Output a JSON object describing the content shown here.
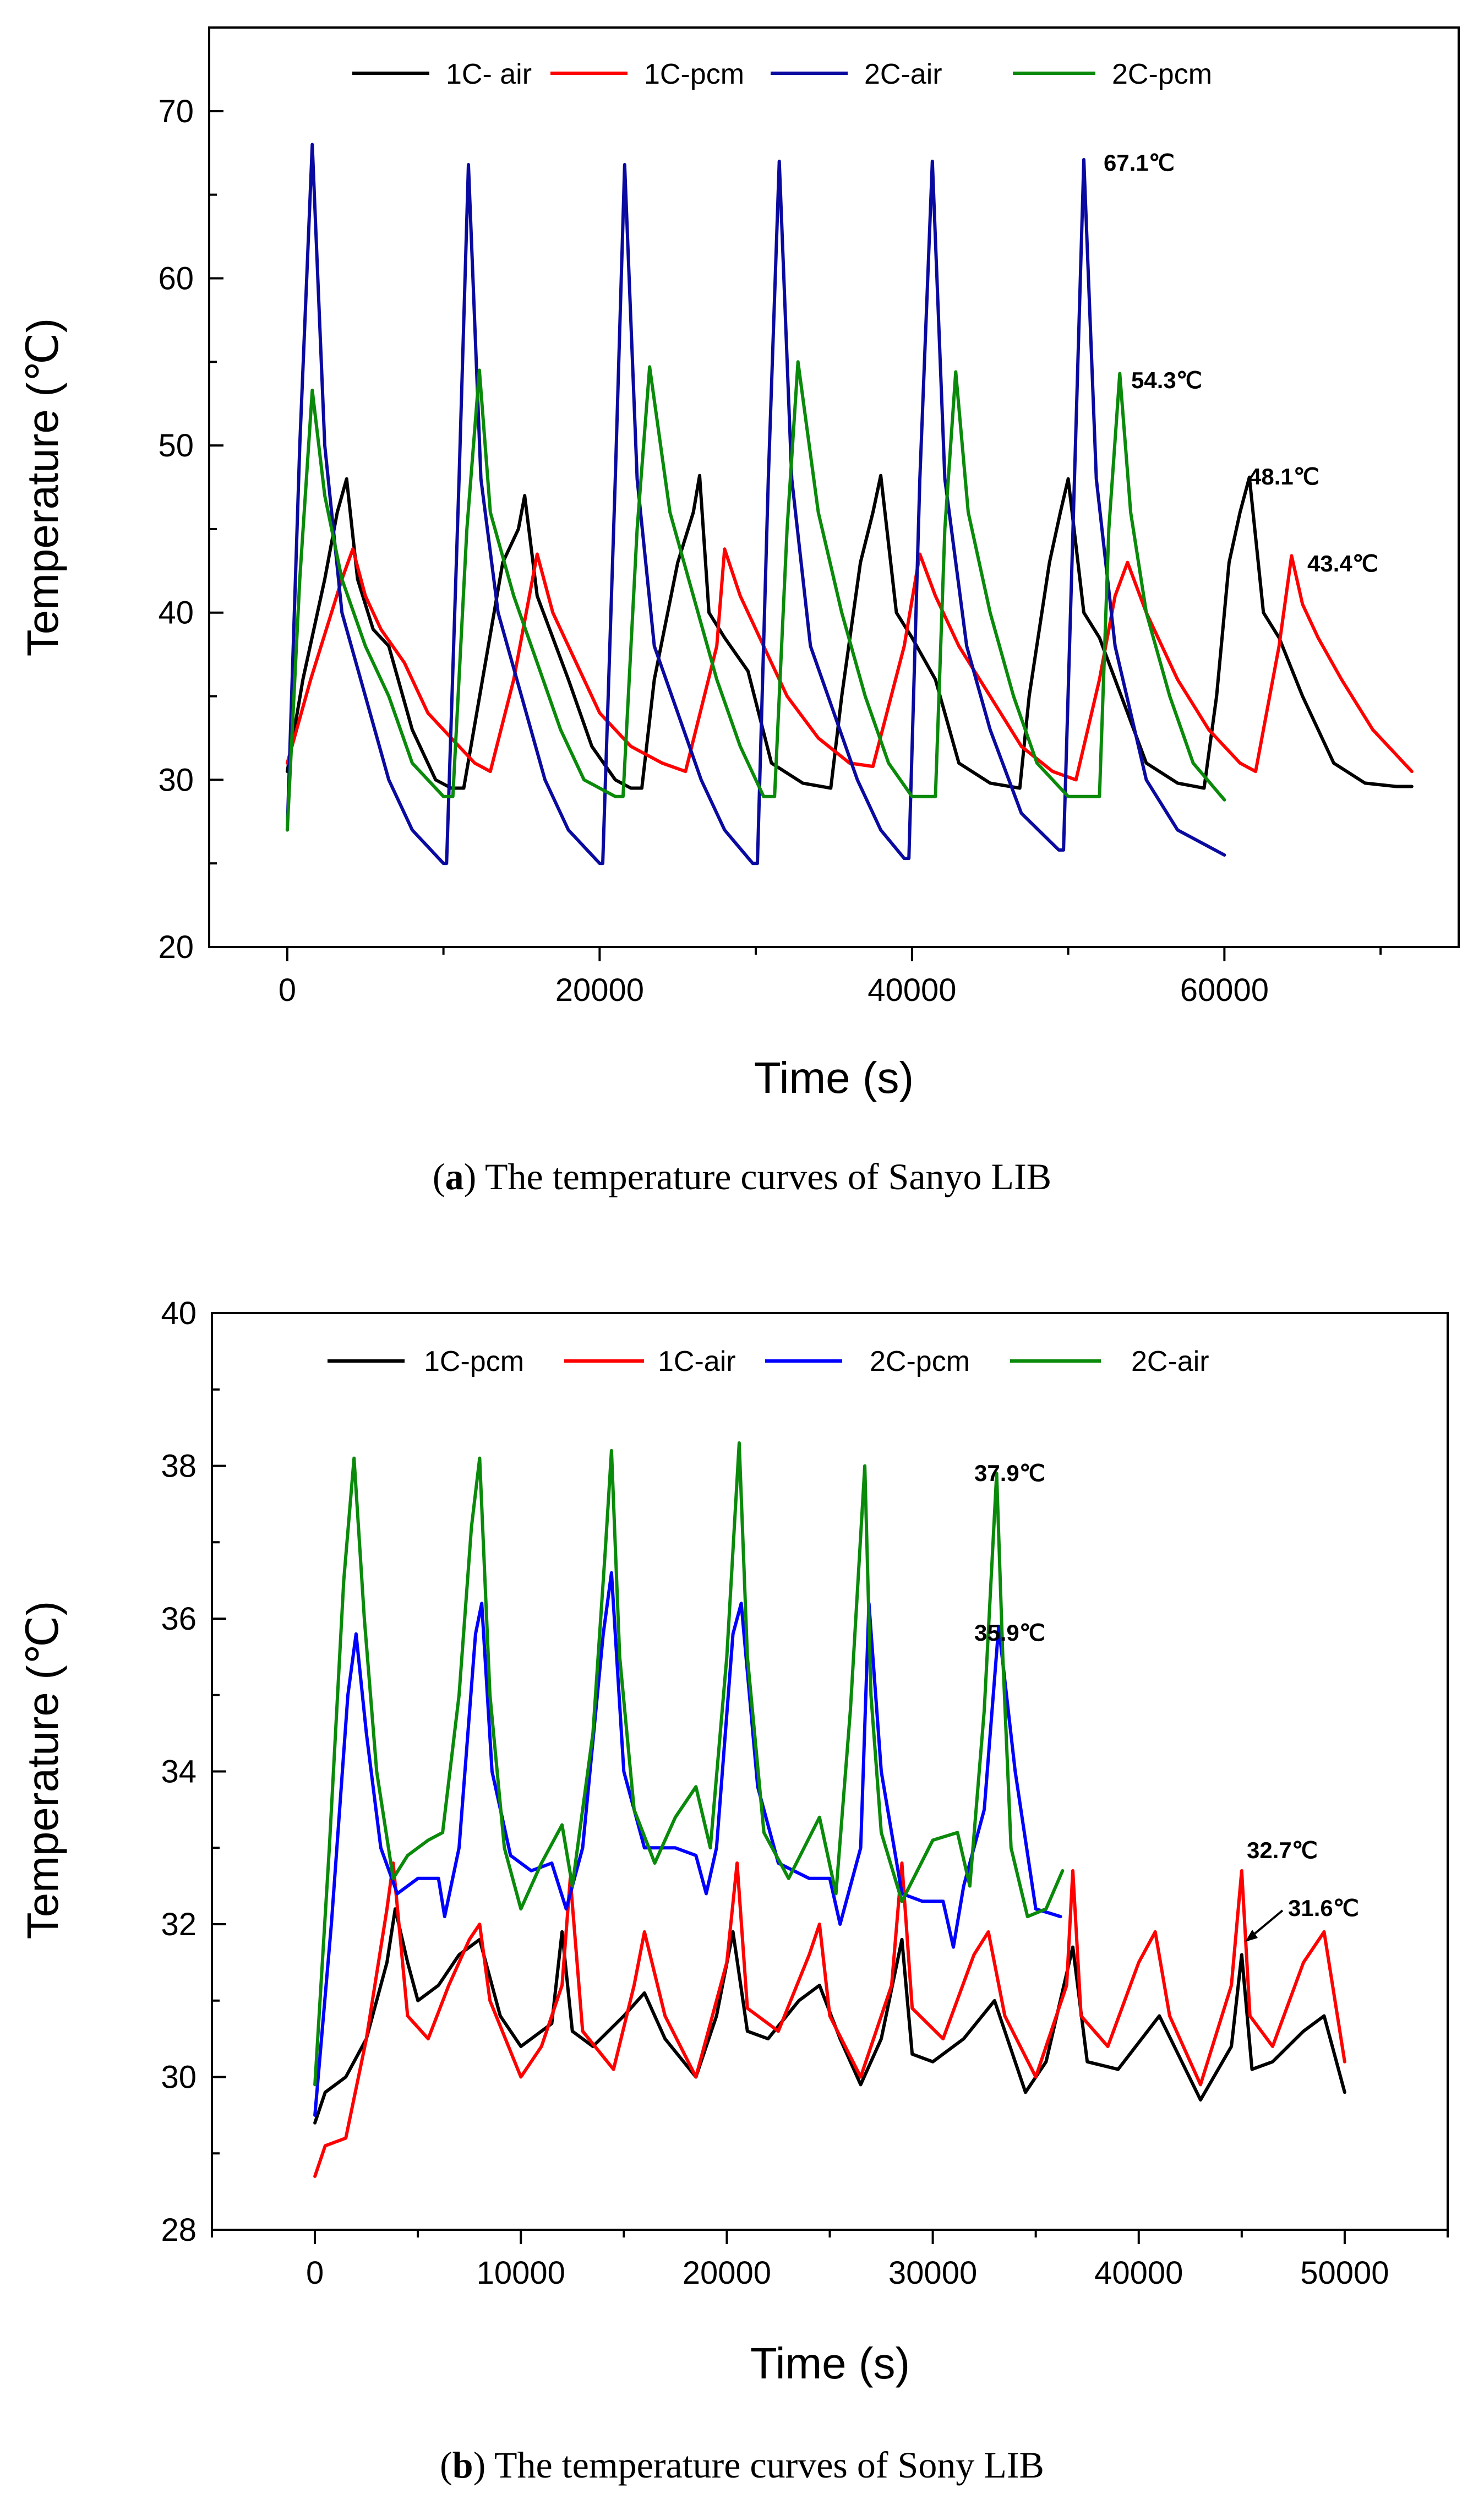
{
  "chart_data": [
    {
      "type": "line",
      "caption_letter": "a",
      "caption_text": "The temperature curves of Sanyo LIB",
      "xlabel": "Time (s)",
      "ylabel": "Temperature (℃)",
      "xlim": [
        -5000,
        75000
      ],
      "ylim": [
        20,
        75
      ],
      "xticks": [
        0,
        20000,
        40000,
        60000
      ],
      "yticks": [
        20,
        30,
        40,
        50,
        60,
        70
      ],
      "legend_position": "top",
      "series": [
        {
          "name": "1C- air",
          "color": "#000000",
          "x": [
            0,
            1000,
            2400,
            3200,
            3800,
            4500,
            5500,
            6500,
            8000,
            9500,
            10500,
            11300,
            12500,
            13800,
            14800,
            15200,
            16000,
            17000,
            18000,
            19500,
            21000,
            22000,
            22700,
            23500,
            25000,
            26000,
            26400,
            27000,
            28000,
            29500,
            31000,
            33000,
            34800,
            35500,
            36700,
            37500,
            38000,
            39000,
            40000,
            41500,
            43000,
            45000,
            46900,
            47500,
            48800,
            49500,
            50000,
            51000,
            52000,
            53000,
            55000,
            57000,
            58700,
            59500,
            60300,
            61000,
            61600,
            62500,
            63500,
            65000,
            67000,
            69000,
            71000,
            72000
          ],
          "y": [
            30.5,
            36,
            42,
            46,
            48,
            42,
            39,
            38,
            33,
            30,
            29.5,
            29.5,
            36,
            43,
            45,
            47,
            41,
            38.5,
            36,
            32,
            30,
            29.5,
            29.5,
            36,
            43,
            46,
            48.2,
            40,
            38.5,
            36.5,
            31,
            29.8,
            29.5,
            35,
            43,
            46,
            48.2,
            40,
            38.5,
            36,
            31,
            29.8,
            29.5,
            35,
            43,
            46,
            48,
            40,
            38.5,
            36,
            31,
            29.8,
            29.5,
            35,
            43,
            46,
            48.1,
            40,
            38.5,
            35,
            31,
            29.8,
            29.6,
            29.6
          ]
        },
        {
          "name": "1C-pcm",
          "color": "#ff0000",
          "x": [
            0,
            1500,
            3500,
            4200,
            5000,
            6000,
            7500,
            9000,
            10500,
            12000,
            13000,
            14500,
            15500,
            16000,
            17000,
            18500,
            20000,
            22000,
            24000,
            25500,
            27500,
            28000,
            29000,
            30500,
            32000,
            34000,
            36000,
            37500,
            39500,
            40500,
            41500,
            43000,
            45000,
            47000,
            49000,
            50500,
            52000,
            53000,
            53800,
            55000,
            57000,
            59000,
            61000,
            62000,
            63500,
            64300,
            65000,
            66000,
            67500,
            69500,
            72000
          ],
          "y": [
            31,
            36,
            42,
            43.8,
            41,
            39,
            37,
            34,
            32.5,
            31,
            30.5,
            36,
            41,
            43.5,
            40,
            37,
            34,
            32,
            31,
            30.5,
            38,
            43.8,
            41,
            38,
            35,
            32.5,
            31,
            30.8,
            38,
            43.5,
            41,
            38,
            35,
            32,
            30.5,
            30,
            36,
            41,
            43,
            40,
            36,
            33,
            31,
            30.5,
            38,
            43.4,
            40.5,
            38.5,
            36,
            33,
            30.5
          ]
        },
        {
          "name": "2C-air",
          "color": "#0a0aa0",
          "x": [
            0,
            800,
            1600,
            2400,
            3500,
            5000,
            6500,
            8000,
            10000,
            10200,
            11000,
            11600,
            12400,
            13500,
            15000,
            16500,
            18000,
            20000,
            20200,
            21000,
            21600,
            22400,
            23500,
            25000,
            26500,
            28000,
            29800,
            30100,
            30800,
            31500,
            32300,
            33500,
            35000,
            36500,
            38000,
            39500,
            39800,
            40500,
            41300,
            42100,
            43500,
            45000,
            47000,
            49400,
            49700,
            50400,
            51000,
            51800,
            53000,
            55000,
            57000,
            59000,
            60000
          ],
          "y": [
            27,
            50,
            68,
            50,
            40,
            35,
            30,
            27,
            25,
            25,
            48,
            66.8,
            48,
            40,
            35,
            30,
            27,
            25,
            25,
            48,
            66.8,
            48,
            38,
            34,
            30,
            27,
            25,
            25,
            48,
            67,
            48,
            38,
            34,
            30,
            27,
            25.3,
            25.3,
            48,
            67,
            48,
            38,
            33,
            28,
            25.8,
            25.8,
            48,
            67.1,
            48,
            38,
            30,
            27,
            26,
            25.5
          ]
        },
        {
          "name": "2C-pcm",
          "color": "#0a8a0a",
          "x": [
            0,
            800,
            1600,
            2400,
            3500,
            5000,
            6500,
            8000,
            10000,
            10600,
            11500,
            12300,
            13000,
            14500,
            16000,
            17500,
            19000,
            21000,
            21500,
            22400,
            23200,
            24500,
            26000,
            27500,
            29000,
            30500,
            31200,
            32000,
            32700,
            34000,
            35500,
            37000,
            38500,
            40000,
            41500,
            42100,
            42800,
            43600,
            45000,
            46500,
            48000,
            50000,
            52000,
            52600,
            53300,
            54000,
            55000,
            56500,
            58000,
            60000
          ],
          "y": [
            27,
            42,
            53.3,
            47,
            42,
            38,
            35,
            31,
            29,
            29,
            45,
            54.5,
            46,
            41,
            37,
            33,
            30,
            29,
            29,
            45,
            54.7,
            46,
            41,
            36,
            32,
            29,
            29,
            45,
            55,
            46,
            40,
            35,
            31,
            29,
            29,
            45,
            54.4,
            46,
            40,
            35,
            31,
            29,
            29,
            45,
            54.3,
            46,
            40,
            35,
            31,
            28.8
          ]
        }
      ],
      "annotations": [
        "67.1℃",
        "54.3℃",
        "48.1℃",
        "43.4℃"
      ],
      "annotation_points": [
        {
          "x": 51000,
          "y": 67.1
        },
        {
          "x": 53500,
          "y": 54.3
        },
        {
          "x": 61000,
          "y": 48.1
        },
        {
          "x": 64500,
          "y": 43.4
        }
      ]
    },
    {
      "type": "line",
      "caption_letter": "b",
      "caption_text": "The temperature curves of Sony LIB",
      "xlabel": "Time (s)",
      "ylabel": "Temperature (℃)",
      "xlim": [
        -5000,
        55000
      ],
      "ylim": [
        28,
        40
      ],
      "xticks": [
        0,
        10000,
        20000,
        30000,
        40000,
        50000
      ],
      "yticks": [
        28,
        30,
        32,
        34,
        36,
        38,
        40
      ],
      "legend_position": "top",
      "series": [
        {
          "name": "1C-pcm",
          "color": "#000000",
          "x": [
            0,
            500,
            1500,
            2500,
            3500,
            3900,
            4500,
            5000,
            6000,
            7000,
            8000,
            8300,
            9000,
            10000,
            11500,
            12000,
            12500,
            13500,
            15000,
            16000,
            17000,
            18500,
            19500,
            20300,
            21000,
            22000,
            23500,
            24500,
            25500,
            26500,
            27500,
            28500,
            29000,
            30000,
            31500,
            33000,
            34500,
            35500,
            36800,
            37500,
            39000,
            41000,
            43000,
            44500,
            45000,
            45500,
            46500,
            48000,
            49000,
            50000
          ],
          "y": [
            29.4,
            29.8,
            30,
            30.5,
            31.5,
            32.2,
            31.5,
            31,
            31.2,
            31.6,
            31.8,
            31.5,
            30.8,
            30.4,
            30.7,
            31.9,
            30.6,
            30.4,
            30.8,
            31.1,
            30.5,
            30.0,
            30.8,
            31.9,
            30.6,
            30.5,
            31.0,
            31.2,
            30.5,
            29.9,
            30.5,
            31.8,
            30.3,
            30.2,
            30.5,
            31.0,
            29.8,
            30.2,
            31.7,
            30.2,
            30.1,
            30.8,
            29.7,
            30.4,
            31.6,
            30.1,
            30.2,
            30.6,
            30.8,
            29.8
          ]
        },
        {
          "name": "1C-air",
          "color": "#ff0000",
          "x": [
            0,
            500,
            1500,
            2500,
            3500,
            3800,
            4500,
            5500,
            6500,
            7500,
            8000,
            8500,
            10000,
            11000,
            12000,
            12400,
            13000,
            14500,
            15500,
            16000,
            17000,
            18500,
            20000,
            20500,
            21000,
            22500,
            24000,
            24500,
            25000,
            26500,
            28000,
            28500,
            29000,
            30500,
            32000,
            32700,
            33500,
            35000,
            36500,
            36800,
            37200,
            38500,
            40000,
            40800,
            41500,
            43000,
            44500,
            45000,
            45400,
            46500,
            48000,
            49000,
            50000
          ],
          "y": [
            28.7,
            29.1,
            29.2,
            30.5,
            32.2,
            32.8,
            30.8,
            30.5,
            31.2,
            31.8,
            32.0,
            31.0,
            30.0,
            30.4,
            31.2,
            32.6,
            30.6,
            30.1,
            31.2,
            31.9,
            30.8,
            30.0,
            31.5,
            32.8,
            30.9,
            30.6,
            31.6,
            32.0,
            30.8,
            30.0,
            31.2,
            32.8,
            30.9,
            30.5,
            31.6,
            31.9,
            30.8,
            30.0,
            31.2,
            32.7,
            30.8,
            30.4,
            31.5,
            31.9,
            30.8,
            29.9,
            31.2,
            32.7,
            30.8,
            30.4,
            31.5,
            31.9,
            30.2
          ]
        },
        {
          "name": "2C-pcm",
          "color": "#0000ff",
          "x": [
            0,
            800,
            1600,
            2000,
            2500,
            3200,
            4000,
            5000,
            6000,
            6300,
            7000,
            7800,
            8100,
            8600,
            9500,
            10500,
            11500,
            12200,
            13000,
            14000,
            14400,
            15000,
            16000,
            17500,
            18500,
            19000,
            19500,
            20300,
            20700,
            21500,
            22500,
            24000,
            25000,
            25500,
            26500,
            26900,
            27500,
            28500,
            29500,
            30500,
            31000,
            31500,
            32500,
            33200,
            34000,
            35000,
            36200
          ],
          "y": [
            29.5,
            32.0,
            35.0,
            35.8,
            34.5,
            33.0,
            32.4,
            32.6,
            32.6,
            32.1,
            33.0,
            35.8,
            36.2,
            34.0,
            32.9,
            32.7,
            32.8,
            32.2,
            33.0,
            35.8,
            36.6,
            34.0,
            33.0,
            33.0,
            32.9,
            32.4,
            33.0,
            35.8,
            36.2,
            33.8,
            32.8,
            32.6,
            32.6,
            32.0,
            33.0,
            36.2,
            34.0,
            32.4,
            32.3,
            32.3,
            31.7,
            32.5,
            33.5,
            35.9,
            34.0,
            32.2,
            32.1
          ]
        },
        {
          "name": "2C-air",
          "color": "#0a8a0a",
          "x": [
            0,
            700,
            1400,
            1900,
            2400,
            3000,
            3800,
            4500,
            5500,
            6200,
            7000,
            7600,
            8000,
            8500,
            9200,
            10000,
            11000,
            12000,
            12500,
            13500,
            14100,
            14400,
            14800,
            15500,
            16500,
            17500,
            18500,
            19200,
            20000,
            20600,
            21000,
            21800,
            23000,
            24500,
            25300,
            26000,
            26700,
            27000,
            27500,
            28500,
            30000,
            31200,
            31800,
            32500,
            33100,
            33400,
            33800,
            34600,
            35500,
            36300
          ],
          "y": [
            29.9,
            33.0,
            36.5,
            38.1,
            36.0,
            34.0,
            32.6,
            32.9,
            33.1,
            33.2,
            35.0,
            37.2,
            38.1,
            35.0,
            33.0,
            32.2,
            32.8,
            33.3,
            32.5,
            34.5,
            36.9,
            38.2,
            35.5,
            33.5,
            32.8,
            33.4,
            33.8,
            33.0,
            35.5,
            38.3,
            35.5,
            33.2,
            32.6,
            33.4,
            32.4,
            34.8,
            38.0,
            35.0,
            33.2,
            32.3,
            33.1,
            33.2,
            32.5,
            34.8,
            37.9,
            35.5,
            33.0,
            32.1,
            32.2,
            32.7
          ]
        }
      ],
      "annotations": [
        "37.9℃",
        "35.9℃",
        "32.7℃",
        "31.6℃"
      ],
      "annotation_points": [
        {
          "x": 33400,
          "y": 37.9
        },
        {
          "x": 33200,
          "y": 35.9
        },
        {
          "x": 45000,
          "y": 32.7
        },
        {
          "x": 45000,
          "y": 31.6
        }
      ]
    }
  ]
}
